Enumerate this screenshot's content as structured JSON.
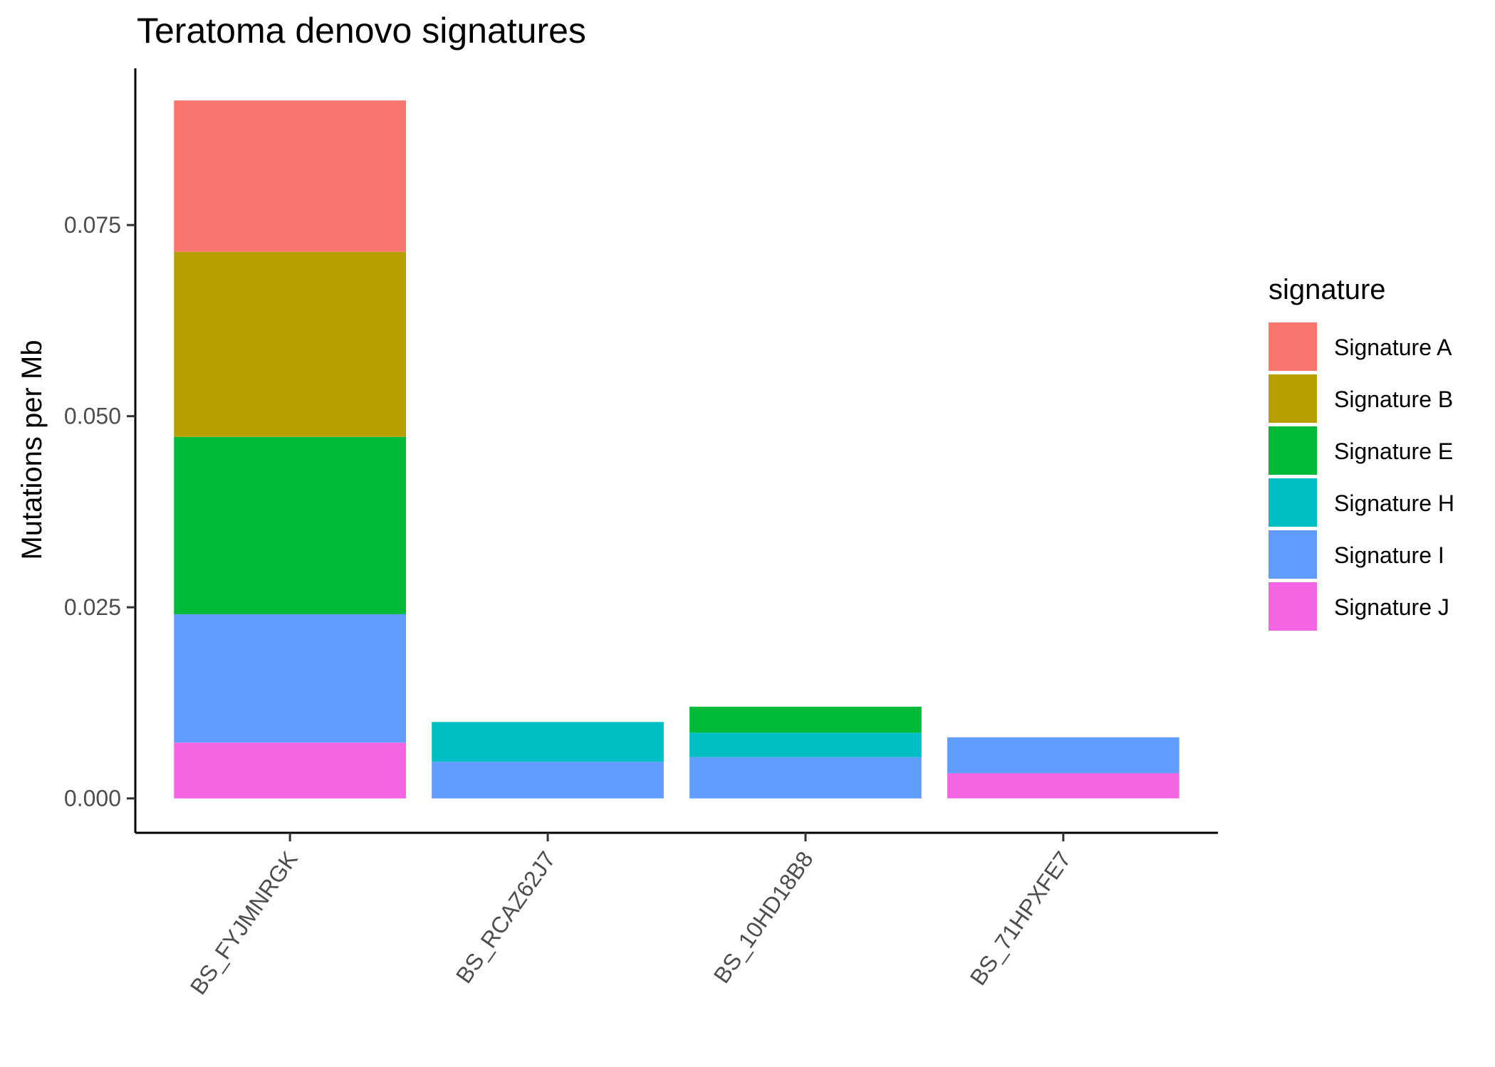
{
  "chart_data": {
    "type": "bar",
    "stacked": true,
    "title": "Teratoma denovo signatures",
    "xlabel": "",
    "ylabel": "Mutations per Mb",
    "ylim": [
      -0.0045,
      0.0955
    ],
    "yticks": [
      0.0,
      0.025,
      0.05,
      0.075
    ],
    "ytick_labels": [
      "0.000",
      "0.025",
      "0.050",
      "0.075"
    ],
    "categories": [
      "BS_FYJMNRGK",
      "BS_RCAZ62J7",
      "BS_10HD18B8",
      "BS_71HPXFE7"
    ],
    "legend_title": "signature",
    "legend_position": "right",
    "grid": false,
    "series": [
      {
        "name": "Signature A",
        "color": "#F8766D",
        "values": [
          0.0198,
          0,
          0,
          0
        ]
      },
      {
        "name": "Signature B",
        "color": "#B79F00",
        "values": [
          0.0242,
          0,
          0,
          0
        ]
      },
      {
        "name": "Signature E",
        "color": "#00BA38",
        "values": [
          0.0232,
          0,
          0.0034,
          0
        ]
      },
      {
        "name": "Signature H",
        "color": "#00BFC4",
        "values": [
          0,
          0.0052,
          0.0032,
          0
        ]
      },
      {
        "name": "Signature I",
        "color": "#619CFF",
        "values": [
          0.0168,
          0.0048,
          0.0054,
          0.0047
        ]
      },
      {
        "name": "Signature J",
        "color": "#F564E3",
        "values": [
          0.0073,
          0,
          0,
          0.0033
        ]
      }
    ]
  }
}
